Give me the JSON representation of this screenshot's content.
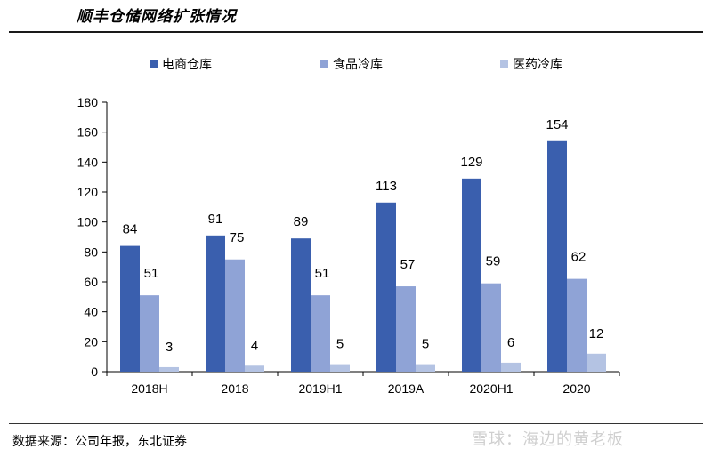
{
  "page": {
    "title": "顺丰仓储网络扩张情况",
    "source": "数据来源：公司年报，东北证券",
    "watermark": "雪球：海边的黄老板"
  },
  "chart_data": {
    "type": "bar",
    "title": "顺丰仓储网络扩张情况",
    "xlabel": "",
    "ylabel": "",
    "ylim": [
      0,
      180
    ],
    "yticks": [
      0,
      20,
      40,
      60,
      80,
      100,
      120,
      140,
      160,
      180
    ],
    "grid": false,
    "legend_position": "top",
    "categories": [
      "2018H",
      "2018",
      "2019H1",
      "2019A",
      "2020H1",
      "2020"
    ],
    "series": [
      {
        "name": "电商仓库",
        "color": "#3a5fae",
        "values": [
          84,
          91,
          89,
          113,
          129,
          154
        ]
      },
      {
        "name": "食品冷库",
        "color": "#8fa3d6",
        "values": [
          51,
          75,
          51,
          57,
          59,
          62
        ]
      },
      {
        "name": "医药冷库",
        "color": "#b4c3e3",
        "values": [
          3,
          4,
          5,
          5,
          6,
          12
        ]
      }
    ]
  }
}
